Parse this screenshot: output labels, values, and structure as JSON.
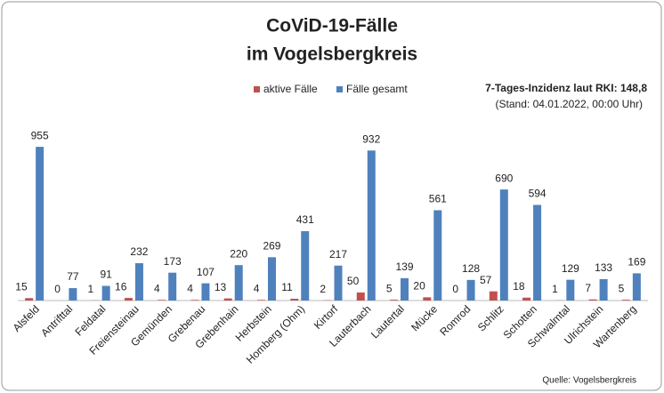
{
  "chart_data": {
    "type": "bar",
    "title": [
      "CoViD-19-Fälle",
      "im Vogelsbergkreis"
    ],
    "annotations": [
      "7-Tages-Inzidenz laut RKI: 148,8",
      "(Stand: 04.01.2022, 00:00 Uhr)"
    ],
    "source": "Quelle: Vogelsbergkreis",
    "categories": [
      "Alsfeld",
      "Antrifttal",
      "Feldatal",
      "Freiensteinau",
      "Gemünden",
      "Grebenau",
      "Grebenhain",
      "Herbstein",
      "Homberg (Ohm)",
      "Kirtorf",
      "Lauterbach",
      "Lautertal",
      "Mücke",
      "Romrod",
      "Schlitz",
      "Schotten",
      "Schwalmtal",
      "Ulrichstein",
      "Wartenberg"
    ],
    "series": [
      {
        "name": "aktive Fälle",
        "color": "#c0504d",
        "values": [
          15,
          0,
          1,
          16,
          4,
          4,
          13,
          4,
          11,
          2,
          50,
          5,
          20,
          0,
          57,
          18,
          1,
          7,
          5
        ]
      },
      {
        "name": "Fälle gesamt",
        "color": "#4f81bd",
        "values": [
          955,
          77,
          91,
          232,
          173,
          107,
          220,
          269,
          431,
          217,
          932,
          139,
          561,
          128,
          690,
          594,
          129,
          133,
          169
        ]
      }
    ],
    "ylim": [
      0,
      1000
    ]
  }
}
